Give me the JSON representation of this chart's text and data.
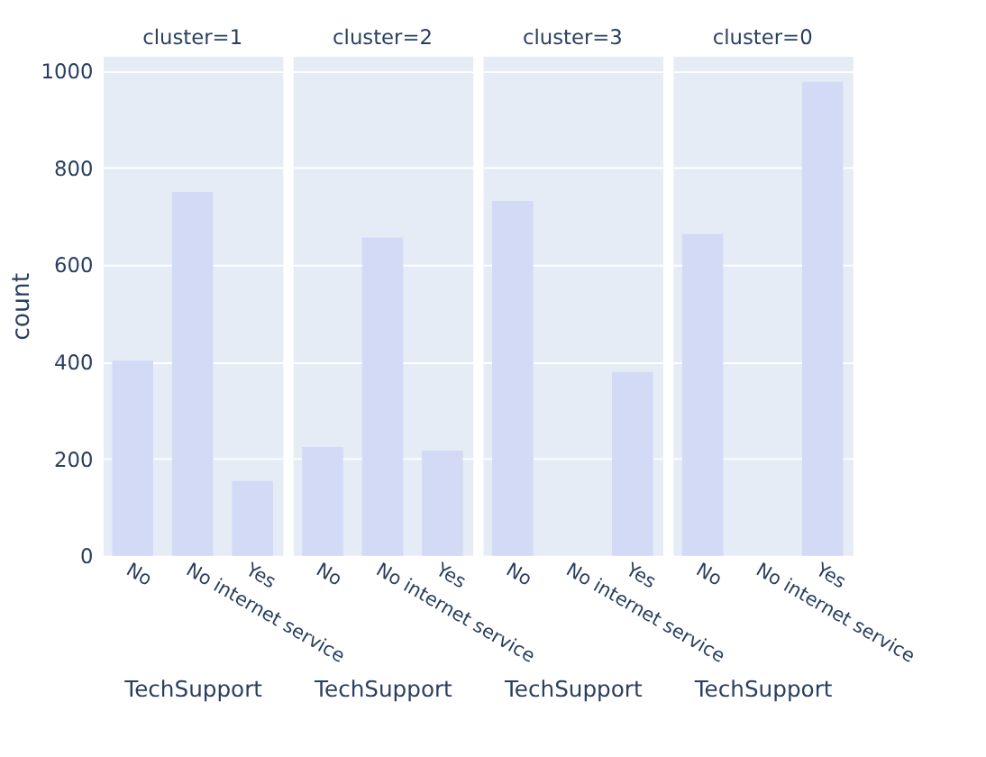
{
  "chart_data": [
    {
      "type": "bar",
      "title": "cluster=1",
      "xlabel": "TechSupport",
      "ylabel": "count",
      "categories": [
        "No",
        "No internet service",
        "Yes"
      ],
      "values": [
        402,
        750,
        154
      ],
      "color": "#d3daf6",
      "ylim": [
        0,
        1030
      ],
      "yticks": [
        0,
        200,
        400,
        600,
        800,
        1000
      ],
      "grid": "y"
    },
    {
      "type": "bar",
      "title": "cluster=2",
      "xlabel": "TechSupport",
      "categories": [
        "No",
        "No internet service",
        "Yes"
      ],
      "values": [
        224,
        656,
        217
      ],
      "color": "#d3daf6",
      "ylim": [
        0,
        1030
      ],
      "yticks": [
        0,
        200,
        400,
        600,
        800,
        1000
      ],
      "grid": "y",
      "tick_labels": "x"
    },
    {
      "type": "bar",
      "title": "cluster=3",
      "xlabel": "TechSupport",
      "categories": [
        "No",
        "No internet service",
        "Yes"
      ],
      "values": [
        731,
        0,
        379
      ],
      "color": "#d3daf6",
      "ylim": [
        0,
        1030
      ],
      "yticks": [
        0,
        200,
        400,
        600,
        800,
        1000
      ],
      "grid": "y",
      "tick_labels": "x"
    },
    {
      "type": "bar",
      "title": "cluster=0",
      "xlabel": "TechSupport",
      "categories": [
        "No",
        "No internet service",
        "Yes"
      ],
      "values": [
        663,
        0,
        977
      ],
      "color": "#d3daf6",
      "ylim": [
        0,
        1030
      ],
      "yticks": [
        0,
        200,
        400,
        600,
        800,
        1000
      ],
      "grid": "y",
      "tick_labels": "x"
    }
  ]
}
